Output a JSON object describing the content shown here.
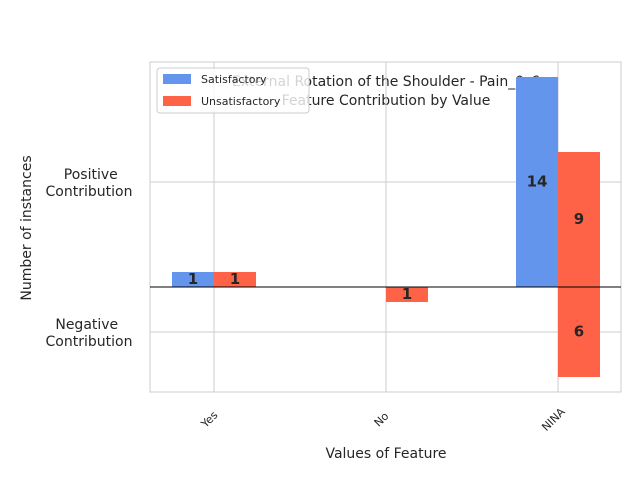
{
  "chart_data": {
    "type": "bar",
    "title_line1": "External Rotation of the Shoulder - Pain_0_6",
    "title_line2": "Feature Contribution by Value",
    "xlabel": "Values of Feature",
    "ylabel": "Number of instances",
    "categories": [
      "Yes",
      "No",
      "NINA"
    ],
    "ytick_labels": {
      "positive": [
        "Positive",
        "Contribution"
      ],
      "negative": [
        "Negative",
        "Contribution"
      ]
    },
    "ylim": [
      -7,
      15
    ],
    "ytick_values": [
      7,
      -3
    ],
    "grid": true,
    "legend_position": "top-left",
    "series": [
      {
        "name": "Satisfactory",
        "color": "#6495ED",
        "positive": [
          1,
          0,
          14
        ],
        "negative": [
          0,
          0,
          0
        ],
        "positive_labels": [
          "1",
          "",
          "14"
        ],
        "negative_labels": [
          "",
          "",
          ""
        ]
      },
      {
        "name": "Unsatisfactory",
        "color": "#FF6347",
        "positive": [
          1,
          0,
          9
        ],
        "negative": [
          0,
          1,
          6
        ],
        "positive_labels": [
          "1",
          "",
          "9"
        ],
        "negative_labels": [
          "",
          "1",
          "6"
        ]
      }
    ]
  }
}
